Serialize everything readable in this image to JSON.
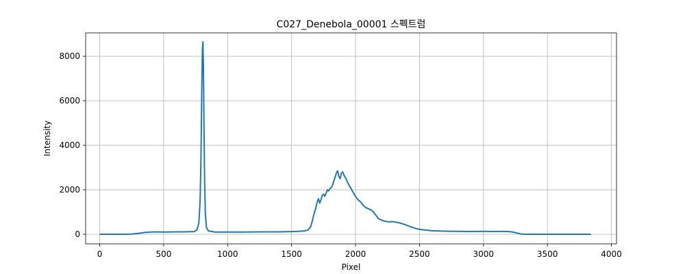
{
  "chart_data": {
    "type": "line",
    "title": "C027_Denebola_00001 스펙트럼",
    "xlabel": "Pixel",
    "ylabel": "Intensity",
    "xlim": [
      -110,
      4040
    ],
    "ylim": [
      -430,
      9050
    ],
    "xticks": [
      0,
      500,
      1000,
      1500,
      2000,
      2500,
      3000,
      3500,
      4000
    ],
    "yticks": [
      0,
      2000,
      4000,
      6000,
      8000
    ],
    "grid": true,
    "line_color": "#1f77b4",
    "series": [
      {
        "x": [
          0,
          100,
          200,
          250,
          300,
          350,
          400,
          450,
          500,
          550,
          600,
          650,
          700,
          740,
          760,
          775,
          785,
          792,
          798,
          803,
          807,
          811,
          815,
          820,
          826,
          835,
          850,
          900,
          1000,
          1100,
          1200,
          1300,
          1400,
          1500,
          1550,
          1600,
          1630,
          1650,
          1660,
          1670,
          1680,
          1690,
          1700,
          1710,
          1720,
          1730,
          1740,
          1750,
          1760,
          1770,
          1780,
          1790,
          1800,
          1810,
          1820,
          1830,
          1840,
          1850,
          1860,
          1870,
          1880,
          1890,
          1900,
          1910,
          1920,
          1930,
          1940,
          1960,
          1980,
          2000,
          2020,
          2040,
          2060,
          2080,
          2100,
          2120,
          2140,
          2160,
          2180,
          2200,
          2220,
          2240,
          2260,
          2280,
          2300,
          2340,
          2380,
          2420,
          2460,
          2500,
          2530,
          2560,
          2600,
          2700,
          2800,
          2900,
          3000,
          3100,
          3150,
          3200,
          3230,
          3260,
          3280,
          3300,
          3350,
          3400,
          3500,
          3600,
          3700,
          3840
        ],
        "y": [
          0,
          0,
          0,
          10,
          40,
          80,
          100,
          110,
          100,
          105,
          110,
          110,
          115,
          120,
          200,
          500,
          1500,
          3500,
          6500,
          8300,
          8650,
          7500,
          5000,
          2500,
          900,
          300,
          150,
          100,
          100,
          100,
          105,
          110,
          110,
          120,
          130,
          150,
          200,
          350,
          550,
          800,
          1000,
          1200,
          1450,
          1600,
          1400,
          1550,
          1750,
          1800,
          1700,
          1850,
          2000,
          1950,
          2050,
          2100,
          2200,
          2400,
          2550,
          2750,
          2850,
          2600,
          2500,
          2750,
          2800,
          2650,
          2550,
          2450,
          2300,
          2100,
          1900,
          1700,
          1550,
          1450,
          1300,
          1200,
          1150,
          1100,
          1000,
          850,
          700,
          650,
          600,
          580,
          550,
          570,
          560,
          520,
          450,
          360,
          280,
          220,
          200,
          180,
          160,
          140,
          130,
          125,
          130,
          125,
          130,
          120,
          100,
          60,
          30,
          10,
          0,
          0,
          0,
          0,
          0,
          0
        ]
      }
    ]
  }
}
